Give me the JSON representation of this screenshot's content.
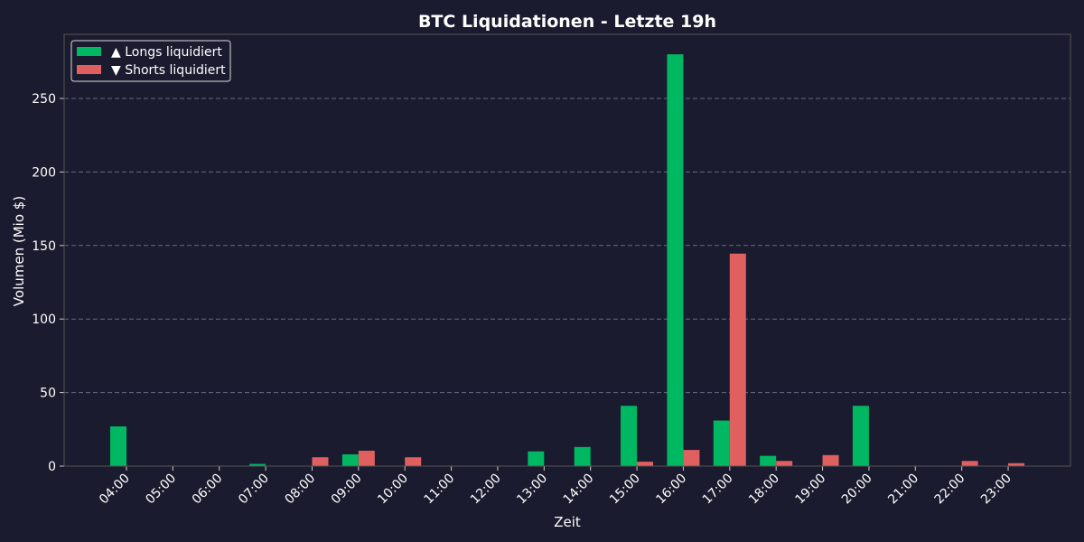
{
  "chart_data": {
    "type": "bar",
    "title": "BTC Liquidationen - Letzte 19h",
    "x_label": "Zeit",
    "y_label": "Volumen (Mio $)",
    "categories": [
      "04:00",
      "05:00",
      "06:00",
      "07:00",
      "08:00",
      "09:00",
      "10:00",
      "11:00",
      "12:00",
      "13:00",
      "14:00",
      "15:00",
      "16:00",
      "17:00",
      "18:00",
      "19:00",
      "20:00",
      "21:00",
      "22:00",
      "23:00"
    ],
    "series": [
      {
        "name": "▲ Longs liquidiert",
        "color": "#00b862",
        "values": [
          27,
          0,
          0,
          1.5,
          0,
          8,
          0,
          0,
          0,
          10,
          13,
          41,
          280,
          31,
          7,
          0,
          41,
          0,
          0,
          0
        ]
      },
      {
        "name": "▼ Shorts liquidiert",
        "color": "#e06060",
        "values": [
          0,
          0,
          0,
          0,
          6,
          10.5,
          6,
          0,
          0,
          0,
          0,
          3,
          11,
          144.5,
          3.5,
          7.5,
          0,
          0,
          3.5,
          2
        ]
      }
    ],
    "ylim": [
      0,
      293.6
    ],
    "yticks": [
      0,
      50,
      100,
      150,
      200,
      250
    ],
    "grid": true,
    "legend": "upper-left"
  }
}
